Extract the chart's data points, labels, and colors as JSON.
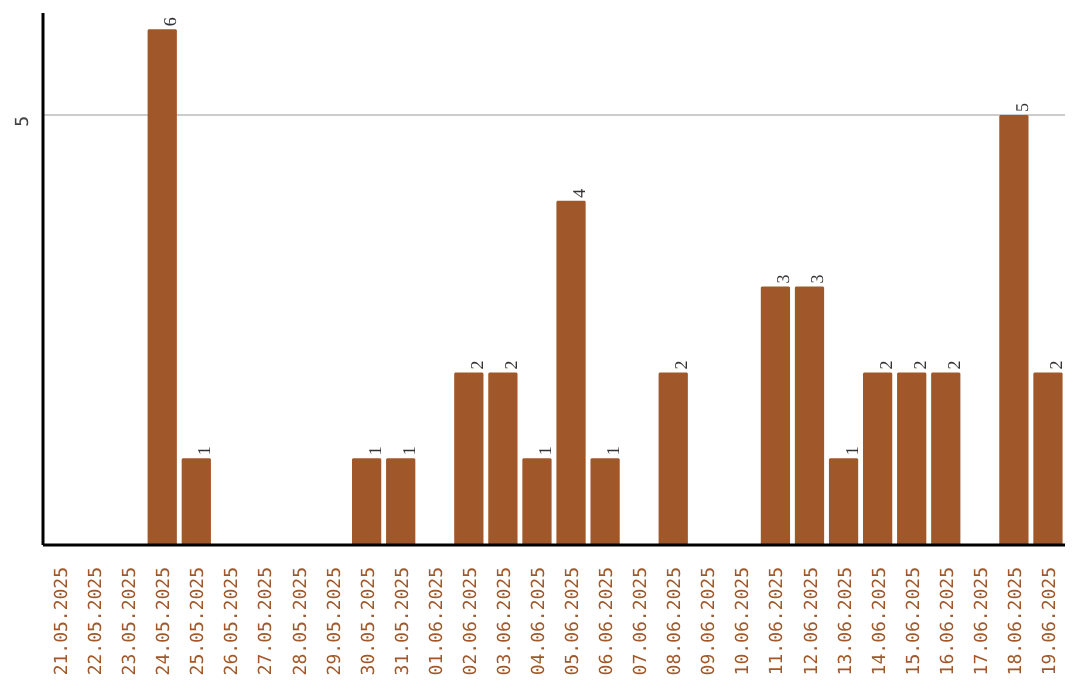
{
  "chart_data": {
    "type": "bar",
    "categories": [
      "21.05.2025",
      "22.05.2025",
      "23.05.2025",
      "24.05.2025",
      "25.05.2025",
      "26.05.2025",
      "27.05.2025",
      "28.05.2025",
      "29.05.2025",
      "30.05.2025",
      "31.05.2025",
      "01.06.2025",
      "02.06.2025",
      "03.06.2025",
      "04.06.2025",
      "05.06.2025",
      "06.06.2025",
      "07.06.2025",
      "08.06.2025",
      "09.06.2025",
      "10.06.2025",
      "11.06.2025",
      "12.06.2025",
      "13.06.2025",
      "14.06.2025",
      "15.06.2025",
      "16.06.2025",
      "17.06.2025",
      "18.06.2025",
      "19.06.2025"
    ],
    "values": [
      null,
      null,
      null,
      6,
      1,
      null,
      null,
      null,
      null,
      1,
      1,
      null,
      2,
      2,
      1,
      4,
      1,
      null,
      2,
      null,
      null,
      3,
      3,
      1,
      2,
      2,
      2,
      null,
      5,
      2
    ],
    "color": "#a0582a",
    "ylim": [
      0,
      6.2
    ],
    "yticks": [
      5
    ],
    "grid": "y",
    "data_labels": true
  }
}
